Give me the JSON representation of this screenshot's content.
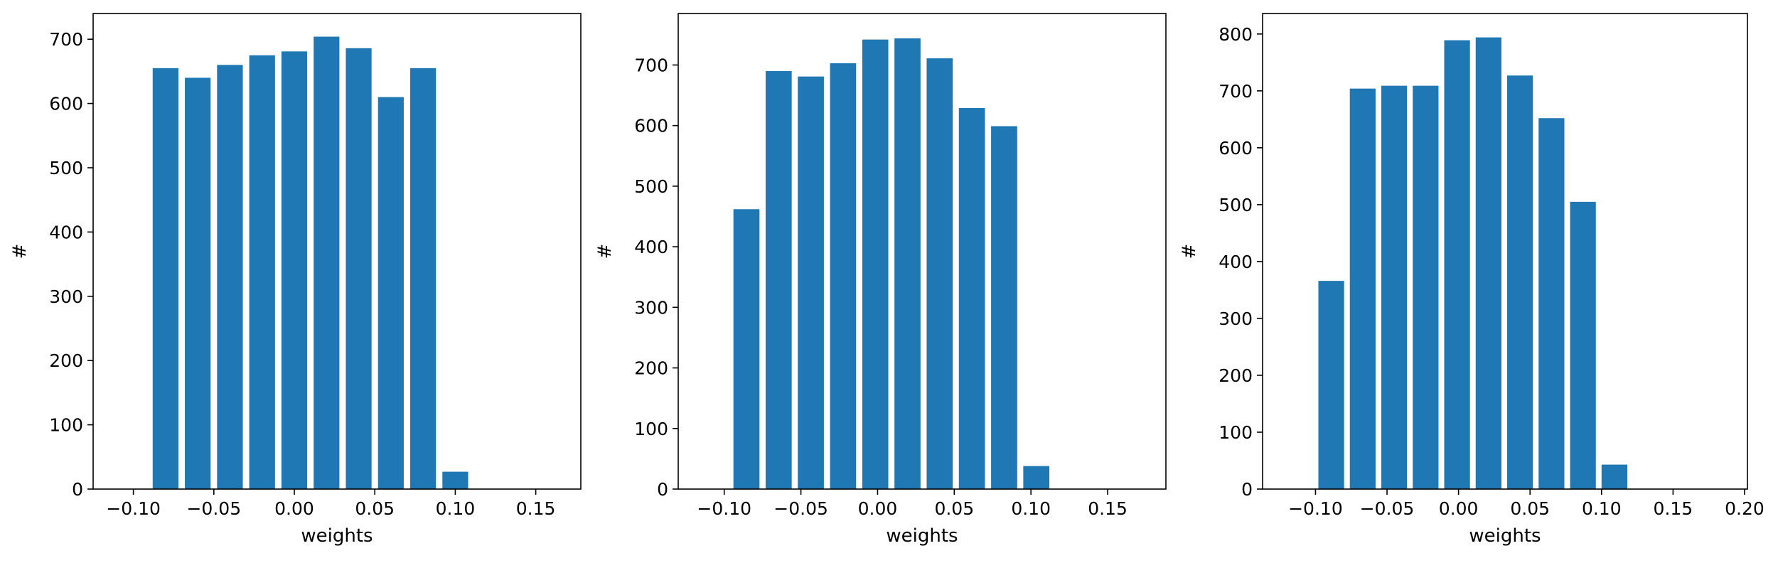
{
  "chart_data": [
    {
      "type": "bar",
      "xlabel": "weights",
      "ylabel": "#",
      "xlim": [
        -0.125,
        0.178
      ],
      "ylim": [
        0,
        740
      ],
      "xticks": [
        -0.1,
        -0.05,
        0.0,
        0.05,
        0.1,
        0.15
      ],
      "xtick_labels": [
        "−0.10",
        "−0.05",
        "0.00",
        "0.05",
        "0.10",
        "0.15"
      ],
      "yticks": [
        0,
        100,
        200,
        300,
        400,
        500,
        600,
        700
      ],
      "ytick_labels": [
        "0",
        "100",
        "200",
        "300",
        "400",
        "500",
        "600",
        "700"
      ],
      "bar_width": 0.016,
      "x": [
        -0.08,
        -0.06,
        -0.04,
        -0.02,
        0.0,
        0.02,
        0.04,
        0.06,
        0.08,
        0.1
      ],
      "values": [
        655,
        640,
        660,
        675,
        681,
        704,
        686,
        610,
        655,
        27
      ],
      "color": "#1f77b4",
      "grid": false
    },
    {
      "type": "bar",
      "xlabel": "weights",
      "ylabel": "#",
      "xlim": [
        -0.13,
        0.188
      ],
      "ylim": [
        0,
        785
      ],
      "xticks": [
        -0.1,
        -0.05,
        0.0,
        0.05,
        0.1,
        0.15
      ],
      "xtick_labels": [
        "−0.10",
        "−0.05",
        "0.00",
        "0.05",
        "0.10",
        "0.15"
      ],
      "yticks": [
        0,
        100,
        200,
        300,
        400,
        500,
        600,
        700
      ],
      "ytick_labels": [
        "0",
        "100",
        "200",
        "300",
        "400",
        "500",
        "600",
        "700"
      ],
      "bar_width": 0.017,
      "x": [
        -0.0855,
        -0.0645,
        -0.0435,
        -0.0225,
        -0.0015,
        0.0195,
        0.0405,
        0.0615,
        0.0825,
        0.1035
      ],
      "values": [
        462,
        690,
        681,
        703,
        742,
        744,
        711,
        629,
        599,
        38
      ],
      "color": "#1f77b4",
      "grid": false
    },
    {
      "type": "bar",
      "xlabel": "weights",
      "ylabel": "#",
      "xlim": [
        -0.137,
        0.202
      ],
      "ylim": [
        0,
        836
      ],
      "xticks": [
        -0.1,
        -0.05,
        0.0,
        0.05,
        0.1,
        0.15,
        0.2
      ],
      "xtick_labels": [
        "−0.10",
        "−0.05",
        "0.00",
        "0.05",
        "0.10",
        "0.15",
        "0.20"
      ],
      "yticks": [
        0,
        100,
        200,
        300,
        400,
        500,
        600,
        700,
        800
      ],
      "ytick_labels": [
        "0",
        "100",
        "200",
        "300",
        "400",
        "500",
        "600",
        "700",
        "800"
      ],
      "bar_width": 0.018,
      "x": [
        -0.089,
        -0.067,
        -0.045,
        -0.023,
        -0.001,
        0.021,
        0.043,
        0.065,
        0.087,
        0.109
      ],
      "values": [
        366,
        704,
        709,
        709,
        789,
        794,
        727,
        652,
        505,
        43
      ],
      "color": "#1f77b4",
      "grid": false
    }
  ]
}
